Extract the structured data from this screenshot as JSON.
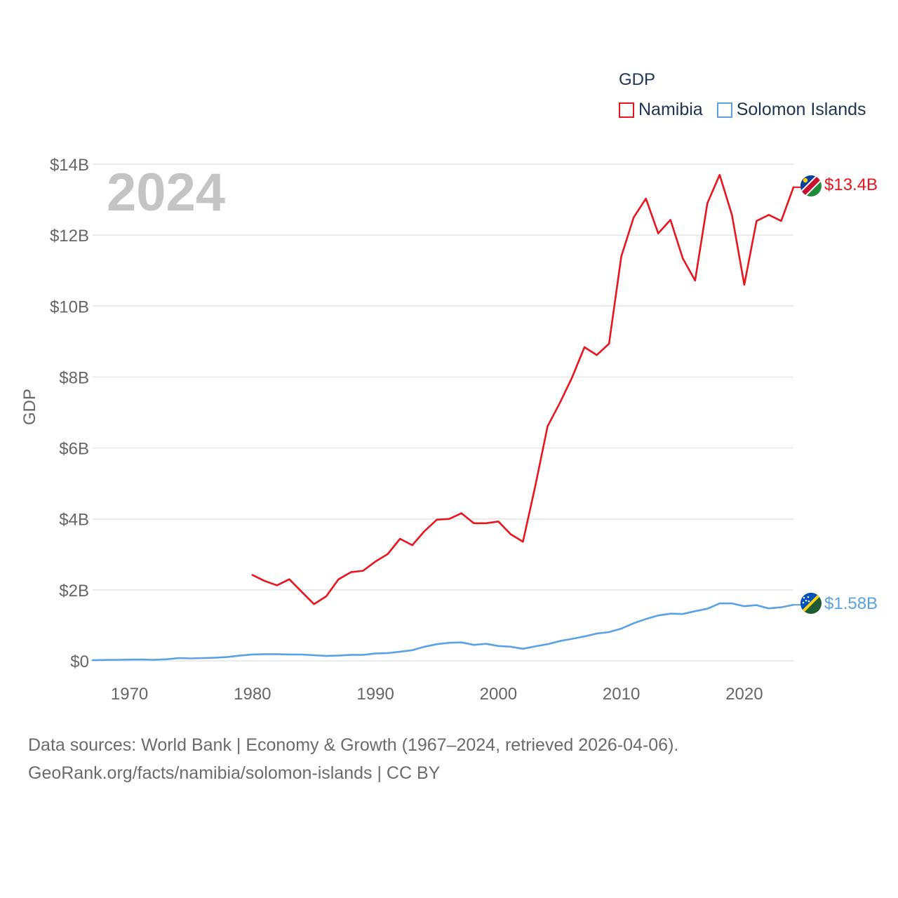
{
  "legend": {
    "title": "GDP",
    "items": [
      {
        "name": "Namibia",
        "color": "#e8141e"
      },
      {
        "name": "Solomon Islands",
        "color": "#5aa2e4"
      }
    ]
  },
  "footer": {
    "line1": "Data sources: World Bank | Economy & Growth (1967–2024, retrieved 2026-04-06).",
    "line2": "GeoRank.org/facts/namibia/solomon-islands | CC BY"
  },
  "chart_data": {
    "type": "line",
    "title": "GDP",
    "year_label": "2024",
    "xlabel": "",
    "ylabel": "GDP",
    "xlim": [
      1967,
      2024
    ],
    "ylim": [
      0,
      14
    ],
    "y_unit": "billion USD",
    "x_ticks": [
      1970,
      1980,
      1990,
      2000,
      2010,
      2020
    ],
    "y_ticks": [
      {
        "value": 0,
        "label": "$0"
      },
      {
        "value": 2,
        "label": "$2B"
      },
      {
        "value": 4,
        "label": "$4B"
      },
      {
        "value": 6,
        "label": "$6B"
      },
      {
        "value": 8,
        "label": "$8B"
      },
      {
        "value": 10,
        "label": "$10B"
      },
      {
        "value": 12,
        "label": "$12B"
      },
      {
        "value": 14,
        "label": "$14B"
      }
    ],
    "grid": true,
    "series": [
      {
        "name": "Namibia",
        "color": "#e8141e",
        "end_label": "$13.4B",
        "x": [
          1980,
          1981,
          1982,
          1983,
          1984,
          1985,
          1986,
          1987,
          1988,
          1989,
          1990,
          1991,
          1992,
          1993,
          1994,
          1995,
          1996,
          1997,
          1998,
          1999,
          2000,
          2001,
          2002,
          2003,
          2004,
          2005,
          2006,
          2007,
          2008,
          2009,
          2010,
          2011,
          2012,
          2013,
          2014,
          2015,
          2016,
          2017,
          2018,
          2019,
          2020,
          2021,
          2022,
          2023,
          2024
        ],
        "values": [
          2.42,
          2.25,
          2.13,
          2.3,
          1.95,
          1.6,
          1.82,
          2.3,
          2.5,
          2.54,
          2.8,
          3.01,
          3.44,
          3.26,
          3.66,
          3.98,
          4.0,
          4.16,
          3.88,
          3.88,
          3.93,
          3.57,
          3.36,
          4.92,
          6.61,
          7.27,
          7.99,
          8.84,
          8.62,
          8.94,
          11.4,
          12.5,
          13.03,
          12.05,
          12.43,
          11.34,
          10.72,
          12.9,
          13.7,
          12.56,
          10.6,
          12.4,
          12.57,
          12.4,
          13.35
        ]
      },
      {
        "name": "Solomon Islands",
        "color": "#5aa2e4",
        "end_label": "$1.58B",
        "x": [
          1967,
          1968,
          1969,
          1970,
          1971,
          1972,
          1973,
          1974,
          1975,
          1976,
          1977,
          1978,
          1979,
          1980,
          1981,
          1982,
          1983,
          1984,
          1985,
          1986,
          1987,
          1988,
          1989,
          1990,
          1991,
          1992,
          1993,
          1994,
          1995,
          1996,
          1997,
          1998,
          1999,
          2000,
          2001,
          2002,
          2003,
          2004,
          2005,
          2006,
          2007,
          2008,
          2009,
          2010,
          2011,
          2012,
          2013,
          2014,
          2015,
          2016,
          2017,
          2018,
          2019,
          2020,
          2021,
          2022,
          2023,
          2024
        ],
        "values": [
          0.02,
          0.025,
          0.03,
          0.035,
          0.04,
          0.03,
          0.045,
          0.08,
          0.07,
          0.08,
          0.09,
          0.11,
          0.15,
          0.18,
          0.19,
          0.19,
          0.18,
          0.18,
          0.16,
          0.14,
          0.15,
          0.17,
          0.17,
          0.21,
          0.22,
          0.26,
          0.3,
          0.4,
          0.47,
          0.51,
          0.52,
          0.45,
          0.48,
          0.42,
          0.4,
          0.34,
          0.41,
          0.47,
          0.56,
          0.62,
          0.69,
          0.77,
          0.81,
          0.91,
          1.06,
          1.18,
          1.28,
          1.33,
          1.32,
          1.4,
          1.47,
          1.62,
          1.62,
          1.54,
          1.57,
          1.48,
          1.51,
          1.58
        ]
      }
    ]
  }
}
